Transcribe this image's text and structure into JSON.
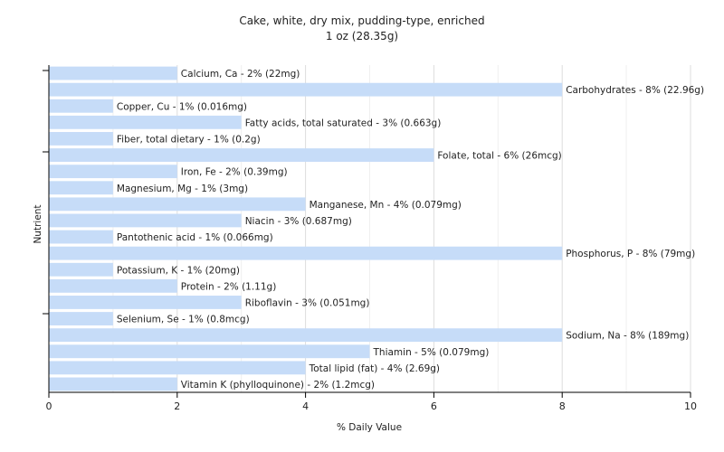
{
  "chart_data": {
    "type": "bar",
    "orientation": "horizontal",
    "title": "Cake, white, dry mix, pudding-type, enriched",
    "subtitle": "1 oz (28.35g)",
    "xlabel": "% Daily Value",
    "ylabel": "Nutrient",
    "xlim": [
      0,
      10
    ],
    "xticks": [
      0,
      2,
      4,
      6,
      8,
      10
    ],
    "grid": true,
    "bar_color": "#c6dcf8",
    "categories": [
      "Calcium, Ca",
      "Carbohydrates",
      "Copper, Cu",
      "Fatty acids, total saturated",
      "Fiber, total dietary",
      "Folate, total",
      "Iron, Fe",
      "Magnesium, Mg",
      "Manganese, Mn",
      "Niacin",
      "Pantothenic acid",
      "Phosphorus, P",
      "Potassium, K",
      "Protein",
      "Riboflavin",
      "Selenium, Se",
      "Sodium, Na",
      "Thiamin",
      "Total lipid (fat)",
      "Vitamin K (phylloquinone)"
    ],
    "values": [
      2,
      8,
      1,
      3,
      1,
      6,
      2,
      1,
      4,
      3,
      1,
      8,
      1,
      2,
      3,
      1,
      8,
      5,
      4,
      2
    ],
    "labels": [
      "Calcium, Ca - 2% (22mg)",
      "Carbohydrates - 8% (22.96g)",
      "Copper, Cu - 1% (0.016mg)",
      "Fatty acids, total saturated - 3% (0.663g)",
      "Fiber, total dietary - 1% (0.2g)",
      "Folate, total - 6% (26mcg)",
      "Iron, Fe - 2% (0.39mg)",
      "Magnesium, Mg - 1% (3mg)",
      "Manganese, Mn - 4% (0.079mg)",
      "Niacin - 3% (0.687mg)",
      "Pantothenic acid - 1% (0.066mg)",
      "Phosphorus, P - 8% (79mg)",
      "Potassium, K - 1% (20mg)",
      "Protein - 2% (1.11g)",
      "Riboflavin - 3% (0.051mg)",
      "Selenium, Se - 1% (0.8mcg)",
      "Sodium, Na - 8% (189mg)",
      "Thiamin - 5% (0.079mg)",
      "Total lipid (fat) - 4% (2.69g)",
      "Vitamin K (phylloquinone) - 2% (1.2mcg)"
    ]
  }
}
